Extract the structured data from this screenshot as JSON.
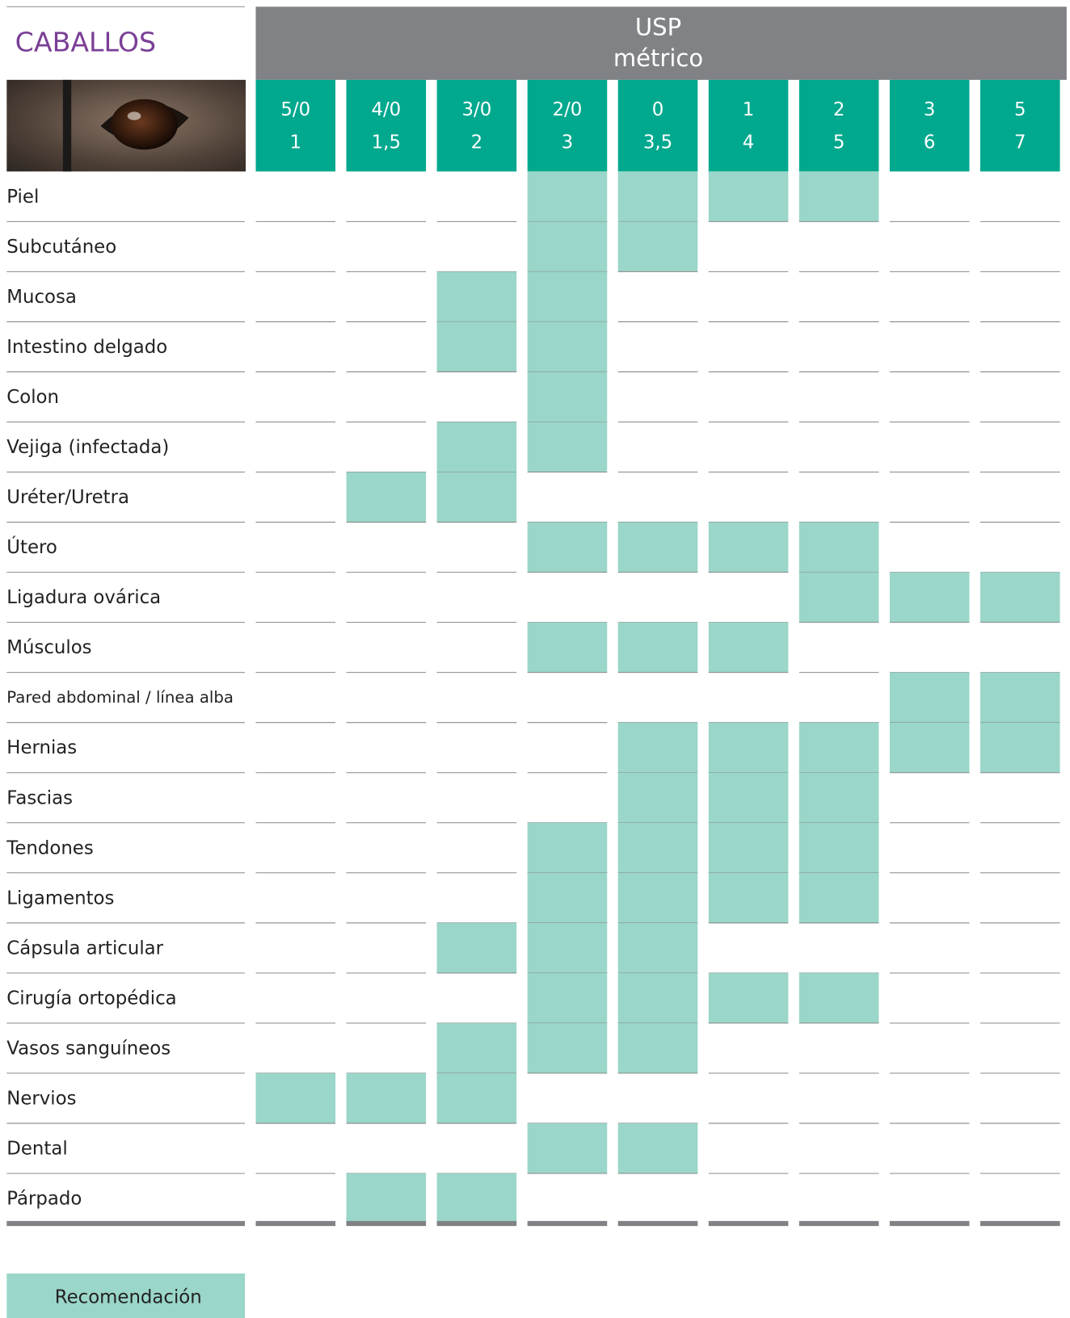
{
  "header": {
    "title": "CABALLOS",
    "group_title": "USP",
    "group_subtitle": "métrico"
  },
  "columns": [
    [
      "5/0",
      "1"
    ],
    [
      "4/0",
      "1,5"
    ],
    [
      "3/0",
      "2"
    ],
    [
      "2/0",
      "3"
    ],
    [
      "0",
      "3,5"
    ],
    [
      "1",
      "4"
    ],
    [
      "2",
      "5"
    ],
    [
      "3",
      "6"
    ],
    [
      "5",
      "7"
    ]
  ],
  "rows": [
    {
      "label": "Piel",
      "recommended": [
        false,
        false,
        false,
        true,
        true,
        true,
        true,
        false,
        false
      ]
    },
    {
      "label": "Subcutáneo",
      "recommended": [
        false,
        false,
        false,
        true,
        true,
        false,
        false,
        false,
        false
      ]
    },
    {
      "label": "Mucosa",
      "recommended": [
        false,
        false,
        true,
        true,
        false,
        false,
        false,
        false,
        false
      ]
    },
    {
      "label": "Intestino delgado",
      "recommended": [
        false,
        false,
        true,
        true,
        false,
        false,
        false,
        false,
        false
      ]
    },
    {
      "label": "Colon",
      "recommended": [
        false,
        false,
        false,
        true,
        false,
        false,
        false,
        false,
        false
      ]
    },
    {
      "label": "Vejiga (infectada)",
      "recommended": [
        false,
        false,
        true,
        true,
        false,
        false,
        false,
        false,
        false
      ]
    },
    {
      "label": "Uréter/Uretra",
      "recommended": [
        false,
        true,
        true,
        false,
        false,
        false,
        false,
        false,
        false
      ]
    },
    {
      "label": "Útero",
      "recommended": [
        false,
        false,
        false,
        true,
        true,
        true,
        true,
        false,
        false
      ]
    },
    {
      "label": "Ligadura ovárica",
      "recommended": [
        false,
        false,
        false,
        false,
        false,
        false,
        true,
        true,
        true
      ]
    },
    {
      "label": "Músculos",
      "recommended": [
        false,
        false,
        false,
        true,
        true,
        true,
        false,
        false,
        false
      ]
    },
    {
      "label": "Pared abdominal / línea alba",
      "recommended": [
        false,
        false,
        false,
        false,
        false,
        false,
        false,
        true,
        true
      ]
    },
    {
      "label": "Hernias",
      "recommended": [
        false,
        false,
        false,
        false,
        true,
        true,
        true,
        true,
        true
      ]
    },
    {
      "label": "Fascias",
      "recommended": [
        false,
        false,
        false,
        false,
        true,
        true,
        true,
        false,
        false
      ]
    },
    {
      "label": "Tendones",
      "recommended": [
        false,
        false,
        false,
        true,
        true,
        true,
        true,
        false,
        false
      ]
    },
    {
      "label": "Ligamentos",
      "recommended": [
        false,
        false,
        false,
        true,
        true,
        true,
        true,
        false,
        false
      ]
    },
    {
      "label": "Cápsula articular",
      "recommended": [
        false,
        false,
        true,
        true,
        true,
        false,
        false,
        false,
        false
      ]
    },
    {
      "label": "Cirugía ortopédica",
      "recommended": [
        false,
        false,
        false,
        true,
        true,
        true,
        true,
        false,
        false
      ]
    },
    {
      "label": "Vasos sanguíneos",
      "recommended": [
        false,
        false,
        true,
        true,
        true,
        false,
        false,
        false,
        false
      ]
    },
    {
      "label": "Nervios",
      "recommended": [
        true,
        true,
        true,
        false,
        false,
        false,
        false,
        false,
        false
      ]
    },
    {
      "label": "Dental",
      "recommended": [
        false,
        false,
        false,
        true,
        true,
        false,
        false,
        false,
        false
      ]
    },
    {
      "label": "Párpado",
      "recommended": [
        false,
        true,
        true,
        false,
        false,
        false,
        false,
        false,
        false
      ]
    }
  ],
  "legend": {
    "label": "Recomendación"
  }
}
